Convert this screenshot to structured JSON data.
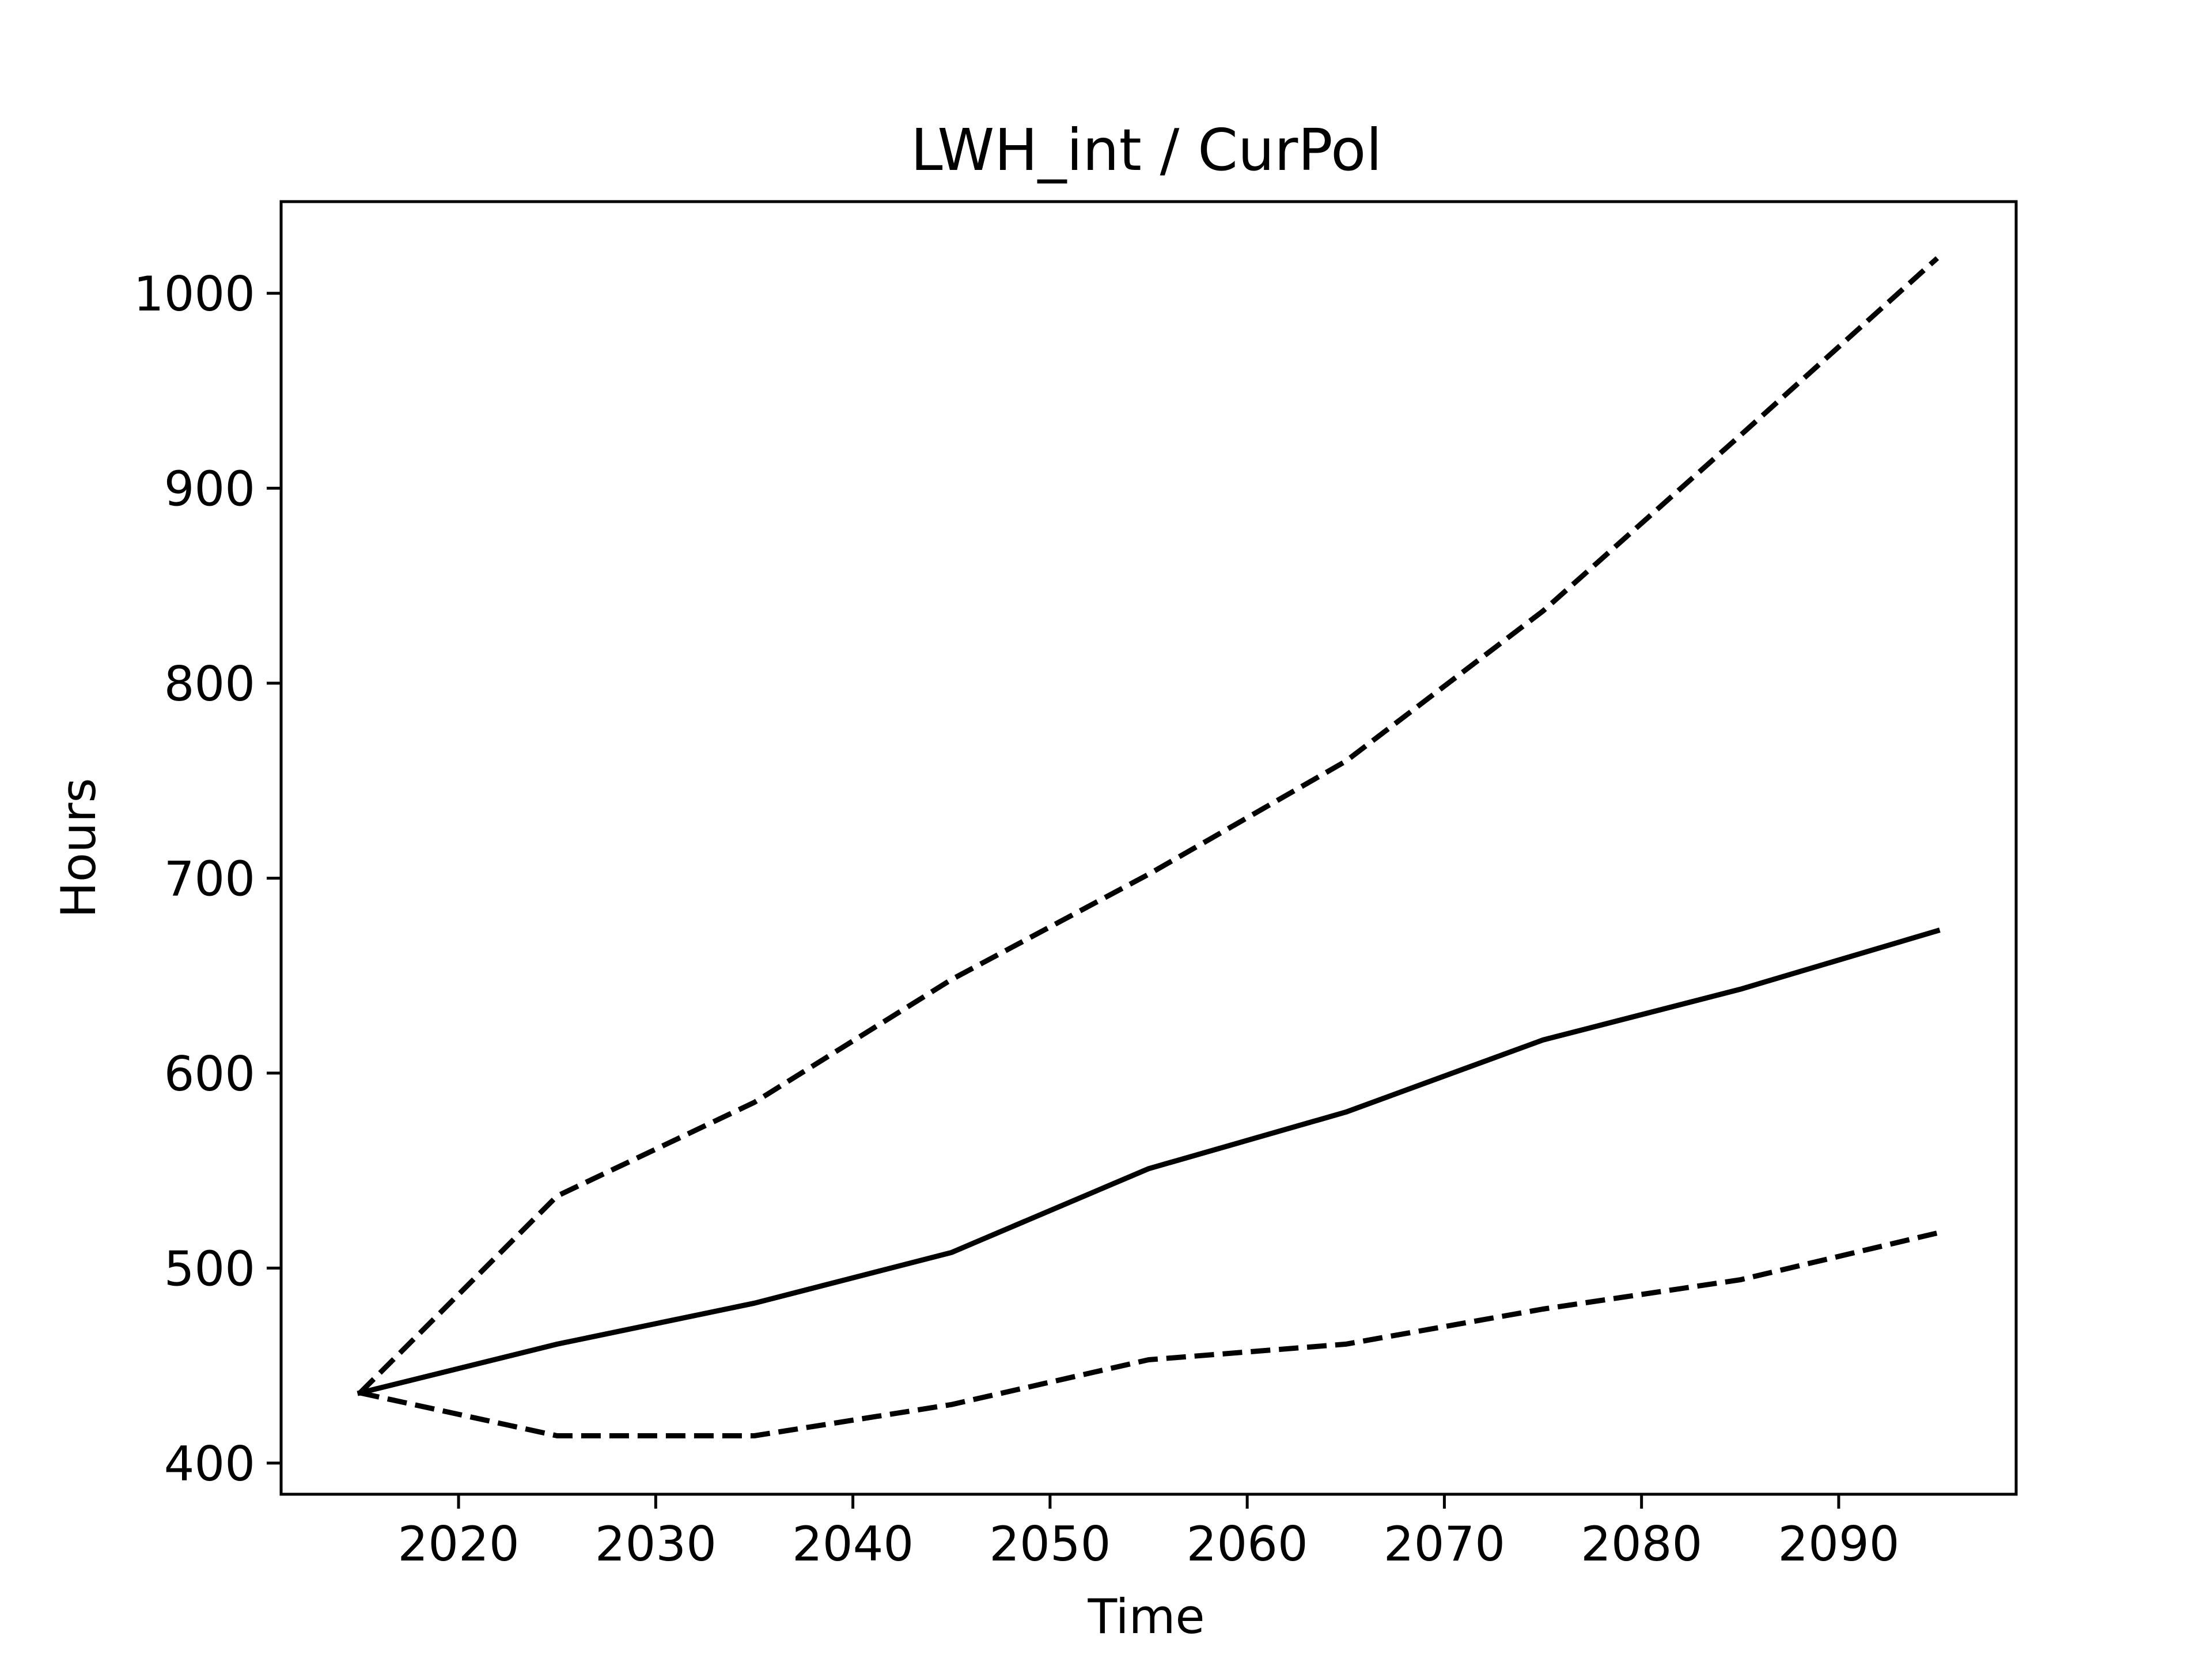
{
  "chart_data": {
    "type": "line",
    "title": "LWH_int / CurPol",
    "xlabel": "Time",
    "ylabel": "Hours",
    "xlim": [
      2011,
      2099
    ],
    "ylim": [
      384,
      1047
    ],
    "grid": false,
    "legend": "none",
    "x_ticks": [
      2020,
      2030,
      2040,
      2050,
      2060,
      2070,
      2080,
      2090
    ],
    "y_ticks": [
      400,
      500,
      600,
      700,
      800,
      900,
      1000
    ],
    "x": [
      2015,
      2025,
      2035,
      2045,
      2055,
      2065,
      2075,
      2085,
      2095
    ],
    "series": [
      {
        "style": "solid",
        "color": "#000000",
        "values": [
          436,
          461,
          482,
          508,
          551,
          580,
          617,
          643,
          673
        ]
      },
      {
        "style": "dashed",
        "color": "#000000",
        "values": [
          436,
          537,
          585,
          648,
          702,
          760,
          837,
          927,
          1018
        ]
      },
      {
        "style": "dashed",
        "color": "#000000",
        "values": [
          436,
          414,
          414,
          430,
          453,
          461,
          479,
          494,
          518
        ]
      }
    ]
  }
}
